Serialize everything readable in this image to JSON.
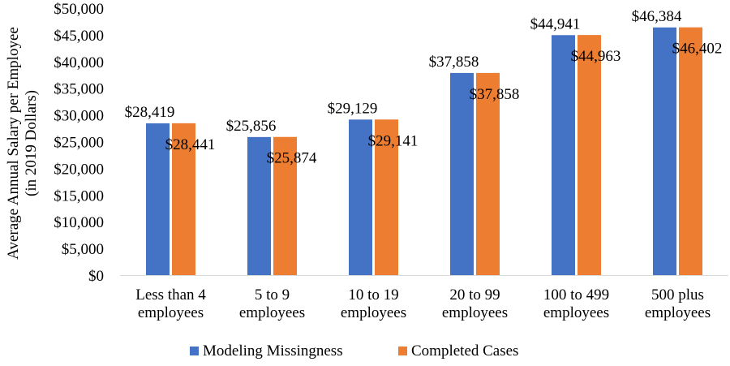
{
  "chart_data": {
    "type": "bar",
    "title": "",
    "categories": [
      [
        "Less than 4",
        "employees"
      ],
      [
        "5 to 9",
        "employees"
      ],
      [
        "10 to 19",
        "employees"
      ],
      [
        "20 to 99",
        "employees"
      ],
      [
        "100 to 499",
        "employees"
      ],
      [
        "500 plus",
        "employees"
      ]
    ],
    "series": [
      {
        "name": "Modeling Missingness",
        "color": "#4472c4",
        "values": [
          28419,
          25856,
          29129,
          37858,
          44941,
          46384
        ],
        "labels": [
          "$28,419",
          "$25,856",
          "$29,129",
          "$37,858",
          "$44,941",
          "$46,384"
        ]
      },
      {
        "name": "Completed Cases",
        "color": "#ed7d31",
        "values": [
          28441,
          25874,
          29141,
          37858,
          44963,
          46402
        ],
        "labels": [
          "$28,441",
          "$25,874",
          "$29,141",
          "$37,858",
          "$44,963",
          "$46,402"
        ]
      }
    ],
    "ylabel": [
      "Average Annual Salary per Employee",
      "(in 2019 Dollars)"
    ],
    "xlabel": "",
    "ylim": [
      0,
      50000
    ],
    "ytick_labels": [
      "$0",
      "$5,000",
      "$10,000",
      "$15,000",
      "$20,000",
      "$25,000",
      "$30,000",
      "$35,000",
      "$40,000",
      "$45,000",
      "$50,000"
    ],
    "grid": false,
    "legend_position": "bottom"
  }
}
